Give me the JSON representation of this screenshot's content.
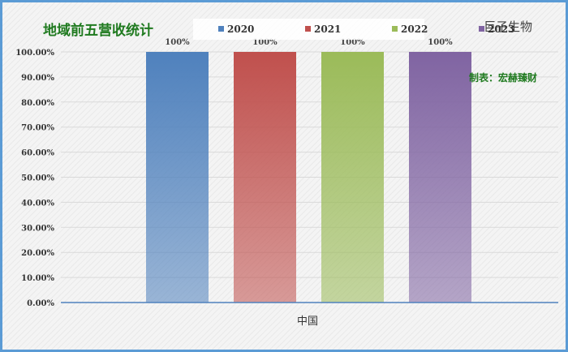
{
  "header": {
    "title": "地域前五营收统计",
    "company": "巨子生物",
    "maker": "制表：宏赫臻财"
  },
  "chart_data": {
    "type": "bar",
    "categories": [
      "中国"
    ],
    "series": [
      {
        "name": "2020",
        "values": [
          100
        ],
        "color": "#4f81bd",
        "data_label": "100%"
      },
      {
        "name": "2021",
        "values": [
          100
        ],
        "color": "#c0504d",
        "data_label": "100%"
      },
      {
        "name": "2022",
        "values": [
          100
        ],
        "color": "#9bbb59",
        "data_label": "100%"
      },
      {
        "name": "2023",
        "values": [
          100
        ],
        "color": "#8064a2",
        "data_label": "100%"
      }
    ],
    "y_ticks": [
      "0.00%",
      "10.00%",
      "20.00%",
      "30.00%",
      "40.00%",
      "50.00%",
      "60.00%",
      "70.00%",
      "80.00%",
      "90.00%",
      "100.00%"
    ],
    "ylim": [
      0,
      100
    ],
    "legend_position": "top",
    "grid": true,
    "title": "地域前五营收统计",
    "xlabel": "",
    "ylabel": ""
  }
}
